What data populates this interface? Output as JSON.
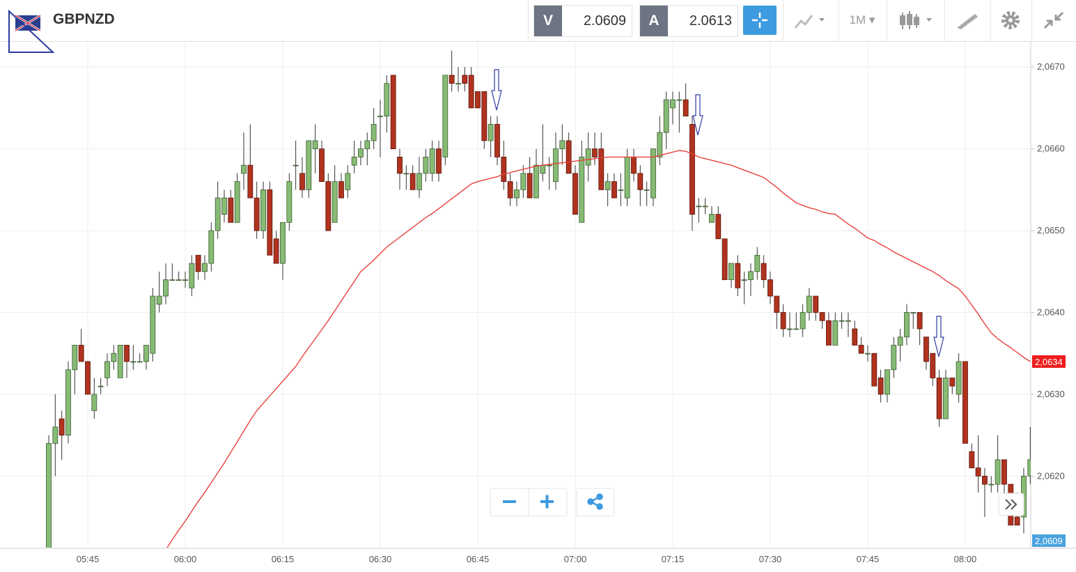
{
  "toolbar": {
    "bid_label": "V",
    "bid": 2.0609,
    "ask_label": "A",
    "ask": 2.0613,
    "period": "1M"
  },
  "chart_data": {
    "type": "candlestick",
    "title": "GBPNZD",
    "categories": [
      null,
      null,
      null,
      null,
      null,
      null,
      "05:45",
      null,
      null,
      null,
      null,
      null,
      null,
      null,
      null,
      null,
      null,
      null,
      null,
      null,
      null,
      "06:00",
      null,
      null,
      null,
      null,
      null,
      null,
      null,
      null,
      null,
      null,
      null,
      null,
      null,
      null,
      "06:15",
      null,
      null,
      null,
      null,
      null,
      null,
      null,
      null,
      null,
      null,
      null,
      null,
      null,
      null,
      "06:30",
      null,
      null,
      null,
      null,
      null,
      null,
      null,
      null,
      null,
      null,
      null,
      null,
      null,
      null,
      "06:45",
      null,
      null,
      null,
      null,
      null,
      null,
      null,
      null,
      null,
      null,
      null,
      null,
      null,
      null,
      "07:00",
      null,
      null,
      null,
      null,
      null,
      null,
      null,
      null,
      null,
      null,
      null,
      null,
      null,
      null,
      "07:15",
      null,
      null,
      null,
      null,
      null,
      null,
      null,
      null,
      null,
      null,
      null,
      null,
      null,
      null,
      "07:30",
      null,
      null,
      null,
      null,
      null,
      null,
      null,
      null,
      null,
      null,
      null,
      null,
      null,
      null,
      "07:45",
      null,
      null,
      null,
      null,
      null,
      null,
      null,
      null,
      null,
      null,
      null,
      null,
      null,
      null,
      "08:00",
      null,
      null,
      null,
      null,
      null,
      null,
      null,
      null,
      null,
      null
    ],
    "open": [
      2.0611,
      2.0624,
      2.0627,
      2.0625,
      2.0633,
      2.0636,
      2.0634,
      2.0628,
      2.0631,
      2.0632,
      2.0634,
      2.0632,
      2.0636,
      2.0634,
      2.0634,
      2.0634,
      2.0635,
      2.0641,
      2.0642,
      2.0644,
      2.0644,
      2.0644,
      2.0643,
      2.0647,
      2.0645,
      2.0646,
      2.065,
      2.0652,
      2.0654,
      2.0651,
      2.0657,
      2.0658,
      2.0654,
      2.065,
      2.0655,
      2.0649,
      2.0646,
      2.0651,
      2.0658,
      2.0657,
      2.0655,
      2.066,
      2.066,
      2.0656,
      2.0651,
      2.0656,
      2.0655,
      2.0658,
      2.0659,
      2.066,
      2.0661,
      2.0664,
      2.0664,
      2.0669,
      2.0659,
      2.0657,
      2.0657,
      2.0655,
      2.0657,
      2.0657,
      2.066,
      2.0659,
      2.0669,
      2.0668,
      2.0669,
      2.0669,
      2.0667,
      2.0667,
      2.0661,
      2.0663,
      2.0659,
      2.0656,
      2.0654,
      2.0655,
      2.0657,
      2.0654,
      2.0657,
      2.0658,
      2.0656,
      2.066,
      2.0661,
      2.0657,
      2.0651,
      2.0658,
      2.066,
      2.066,
      2.0655,
      2.0656,
      2.0655,
      2.0654,
      2.0659,
      2.0657,
      2.0655,
      2.0654,
      2.0659,
      2.0662,
      2.0665,
      2.0666,
      2.0666,
      2.0663,
      2.0653,
      2.0653,
      2.0651,
      2.0652,
      2.0649,
      2.0644,
      2.0646,
      2.0644,
      2.0644,
      2.0645,
      2.0646,
      2.0644,
      2.0642,
      2.064,
      2.0638,
      2.0638,
      2.0638,
      2.064,
      2.0642,
      2.064,
      2.0639,
      2.0636,
      2.0639,
      2.0639,
      2.0638,
      2.0636,
      2.0635,
      2.0635,
      2.0632,
      2.063,
      2.0633,
      2.0636,
      2.0637,
      2.064,
      2.064,
      2.0637,
      2.0635,
      2.0632,
      2.0627,
      2.0632,
      2.063,
      2.0634,
      2.0623,
      2.0621,
      2.062,
      2.0619,
      2.0619,
      2.0622,
      2.0619,
      2.0615,
      2.0615,
      2.062
    ],
    "high": [
      2.0625,
      2.063,
      2.0628,
      2.0634,
      2.0636,
      2.0638,
      2.0634,
      2.0632,
      2.0632,
      2.0635,
      2.0636,
      2.0636,
      2.0636,
      2.0636,
      2.0635,
      2.0636,
      2.0643,
      2.0645,
      2.0646,
      2.0646,
      2.0645,
      2.0645,
      2.0647,
      2.0647,
      2.0647,
      2.0651,
      2.0656,
      2.0655,
      2.0655,
      2.0657,
      2.0662,
      2.0663,
      2.0656,
      2.0656,
      2.0656,
      2.065,
      2.0651,
      2.0657,
      2.0661,
      2.0659,
      2.0661,
      2.0663,
      2.0661,
      2.0657,
      2.0658,
      2.0657,
      2.0658,
      2.0661,
      2.0661,
      2.0662,
      2.0665,
      2.0666,
      2.0669,
      2.0669,
      2.066,
      2.0658,
      2.0658,
      2.0659,
      2.066,
      2.0661,
      2.0661,
      2.0669,
      2.0672,
      2.067,
      2.067,
      2.067,
      2.0667,
      2.0667,
      2.0664,
      2.0664,
      2.0661,
      2.0657,
      2.0656,
      2.0658,
      2.0659,
      2.066,
      2.0663,
      2.0659,
      2.0662,
      2.0663,
      2.0662,
      2.0658,
      2.0661,
      2.0662,
      2.0662,
      2.0662,
      2.0657,
      2.0657,
      2.0657,
      2.066,
      2.066,
      2.0658,
      2.0656,
      2.066,
      2.0664,
      2.0667,
      2.0667,
      2.0667,
      2.0668,
      2.0664,
      2.0654,
      2.0654,
      2.0653,
      2.0653,
      2.0649,
      2.0646,
      2.0647,
      2.0645,
      2.0646,
      2.0648,
      2.0647,
      2.0645,
      2.0642,
      2.0641,
      2.064,
      2.064,
      2.0641,
      2.0643,
      2.0642,
      2.064,
      2.064,
      2.064,
      2.064,
      2.064,
      2.0639,
      2.0637,
      2.0636,
      2.0635,
      2.0633,
      2.0633,
      2.0637,
      2.0638,
      2.0641,
      2.064,
      2.064,
      2.0637,
      2.0635,
      2.0633,
      2.0633,
      2.0632,
      2.0635,
      2.0634,
      2.0624,
      2.0625,
      2.0621,
      2.062,
      2.0625,
      2.0622,
      2.0619,
      2.0618,
      2.0621,
      2.0626
    ],
    "low": [
      2.0611,
      2.062,
      2.0622,
      2.0624,
      2.063,
      2.0634,
      2.063,
      2.0627,
      2.063,
      2.0631,
      2.0633,
      2.0632,
      2.0632,
      2.0633,
      2.0634,
      2.0633,
      2.0634,
      2.064,
      2.0641,
      2.0644,
      2.0644,
      2.0643,
      2.0642,
      2.0644,
      2.0644,
      2.0645,
      2.0649,
      2.0651,
      2.0651,
      2.0651,
      2.0655,
      2.0654,
      2.0649,
      2.0649,
      2.0647,
      2.0646,
      2.0644,
      2.065,
      2.0655,
      2.0654,
      2.0654,
      2.0657,
      2.0656,
      2.065,
      2.0651,
      2.0654,
      2.0654,
      2.0657,
      2.0658,
      2.0658,
      2.066,
      2.0659,
      2.0662,
      2.066,
      2.0655,
      2.0655,
      2.0655,
      2.0654,
      2.0656,
      2.0656,
      2.0656,
      2.0658,
      2.0667,
      2.0667,
      2.0667,
      2.0665,
      2.0665,
      2.066,
      2.0659,
      2.0658,
      2.0655,
      2.0653,
      2.0653,
      2.0654,
      2.0654,
      2.0654,
      2.0656,
      2.0655,
      2.0655,
      2.0658,
      2.0657,
      2.0652,
      2.0651,
      2.0656,
      2.0658,
      2.0655,
      2.0653,
      2.0654,
      2.0653,
      2.0653,
      2.0656,
      2.0653,
      2.0653,
      2.0653,
      2.0658,
      2.066,
      2.0663,
      2.0662,
      2.0664,
      2.065,
      2.0651,
      2.0652,
      2.0651,
      2.0649,
      2.0644,
      2.0643,
      2.0642,
      2.0641,
      2.0642,
      2.0644,
      2.0643,
      2.0641,
      2.0638,
      2.0637,
      2.0637,
      2.0638,
      2.0637,
      2.0639,
      2.0639,
      2.0638,
      2.0636,
      2.0636,
      2.0638,
      2.0637,
      2.0636,
      2.0635,
      2.0634,
      2.0631,
      2.0629,
      2.0629,
      2.0632,
      2.0634,
      2.0636,
      2.0638,
      2.0636,
      2.0633,
      2.0631,
      2.0626,
      2.0627,
      2.063,
      2.0629,
      2.0624,
      2.0621,
      2.0618,
      2.0615,
      2.0618,
      2.0618,
      2.0617,
      2.0614,
      2.0614,
      2.0613,
      2.0619
    ],
    "close": [
      2.0624,
      2.0626,
      2.0625,
      2.0633,
      2.0636,
      2.0634,
      2.063,
      2.063,
      2.0631,
      2.0634,
      2.0635,
      2.0636,
      2.0634,
      2.0634,
      2.0634,
      2.0636,
      2.0642,
      2.0642,
      2.0644,
      2.0644,
      2.0644,
      2.0644,
      2.0646,
      2.0645,
      2.0646,
      2.065,
      2.0654,
      2.0654,
      2.0651,
      2.0656,
      2.0658,
      2.0654,
      2.065,
      2.0655,
      2.0647,
      2.0646,
      2.0651,
      2.0656,
      2.0658,
      2.0655,
      2.0661,
      2.0661,
      2.0656,
      2.065,
      2.0656,
      2.0654,
      2.0657,
      2.0659,
      2.066,
      2.0661,
      2.0663,
      2.0664,
      2.0668,
      2.066,
      2.0657,
      2.0657,
      2.0655,
      2.0657,
      2.0659,
      2.066,
      2.0657,
      2.0669,
      2.0668,
      2.0668,
      2.0668,
      2.0665,
      2.0665,
      2.0661,
      2.0663,
      2.0659,
      2.0656,
      2.0654,
      2.0655,
      2.0657,
      2.0654,
      2.0658,
      2.0658,
      2.0658,
      2.066,
      2.0661,
      2.0657,
      2.0652,
      2.0659,
      2.066,
      2.0659,
      2.0655,
      2.0656,
      2.0654,
      2.0655,
      2.0659,
      2.0657,
      2.0655,
      2.0655,
      2.066,
      2.0662,
      2.0666,
      2.0666,
      2.0666,
      2.0664,
      2.0652,
      2.0653,
      2.0653,
      2.0652,
      2.0649,
      2.0644,
      2.0646,
      2.0643,
      2.0644,
      2.0645,
      2.0647,
      2.0644,
      2.0642,
      2.064,
      2.0638,
      2.0638,
      2.0638,
      2.064,
      2.0642,
      2.064,
      2.0639,
      2.0636,
      2.0639,
      2.0639,
      2.0639,
      2.0636,
      2.0635,
      2.0635,
      2.0631,
      2.063,
      2.0633,
      2.0636,
      2.0637,
      2.064,
      2.064,
      2.0638,
      2.0634,
      2.0632,
      2.0627,
      2.0632,
      2.0631,
      2.0634,
      2.0624,
      2.0621,
      2.062,
      2.0619,
      2.0619,
      2.0622,
      2.0619,
      2.0614,
      2.0614,
      2.062,
      2.0622
    ],
    "up_color": "#86bb74",
    "down_color": "#b0331f",
    "series": [
      {
        "type": "line",
        "color": "#e8403a",
        "values": [
          null,
          null,
          null,
          null,
          null,
          null,
          null,
          null,
          null,
          null,
          null,
          null,
          null,
          null,
          null,
          null,
          null,
          null,
          2.0611,
          2.06122,
          2.06134,
          2.06145,
          2.06157,
          2.06169,
          2.0618,
          2.06192,
          2.06204,
          2.06216,
          2.06229,
          2.06242,
          2.06255,
          2.06268,
          2.0628,
          2.06289,
          2.06298,
          2.06307,
          2.06316,
          2.06325,
          2.06334,
          2.06346,
          2.06357,
          2.06368,
          2.06379,
          2.0639,
          2.06402,
          2.06414,
          2.06426,
          2.06438,
          2.0645,
          2.06457,
          2.06464,
          2.06472,
          2.0648,
          2.06486,
          2.06492,
          2.06498,
          2.06504,
          2.0651,
          2.06516,
          2.06521,
          2.06527,
          2.06533,
          2.06539,
          2.06545,
          2.06551,
          2.06557,
          2.0656,
          2.06562,
          2.06564,
          2.06566,
          2.06569,
          2.06571,
          2.06573,
          2.06575,
          2.06577,
          2.06579,
          2.0658,
          2.06581,
          2.06582,
          2.06583,
          2.06584,
          2.06585,
          2.06586,
          2.06587,
          2.06588,
          2.06589,
          2.0659,
          2.0659,
          2.0659,
          2.0659,
          2.0659,
          2.0659,
          2.0659,
          2.0659,
          2.06592,
          2.06594,
          2.06596,
          2.06598,
          2.06597,
          2.06594,
          2.0659,
          2.06588,
          2.06586,
          2.06584,
          2.06582,
          2.0658,
          2.06577,
          2.06574,
          2.06571,
          2.06568,
          2.06565,
          2.06559,
          2.06553,
          2.06546,
          2.0654,
          2.06534,
          2.06531,
          2.06528,
          2.06526,
          2.06523,
          2.06521,
          2.0652,
          2.06514,
          2.06508,
          2.06503,
          2.06497,
          2.06491,
          2.06488,
          2.06483,
          2.06479,
          2.06474,
          2.0647,
          2.06466,
          2.06462,
          2.06458,
          2.06454,
          2.0645,
          2.06445,
          2.06439,
          2.06434,
          2.06429,
          2.0642,
          2.06409,
          2.06398,
          2.06386,
          2.06375,
          2.06368,
          2.06362,
          2.06357,
          2.06351,
          2.06345,
          2.0634
        ]
      }
    ],
    "price_tags": [
      {
        "value": 2.0634,
        "label": "2,0634",
        "color": "#ee1c1c"
      },
      {
        "value": 2.0609,
        "label": "2,0609",
        "color": "#4aa3df"
      }
    ],
    "ylim": [
      2.0611,
      2.0673
    ],
    "yticks": [
      {
        "value": 2.062,
        "label": "2,0620"
      },
      {
        "value": 2.063,
        "label": "2,0630"
      },
      {
        "value": 2.064,
        "label": "2,0640"
      },
      {
        "value": 2.065,
        "label": "2,0650"
      },
      {
        "value": 2.066,
        "label": "2,0660"
      },
      {
        "value": 2.067,
        "label": "2,0670"
      }
    ],
    "grid": true
  }
}
